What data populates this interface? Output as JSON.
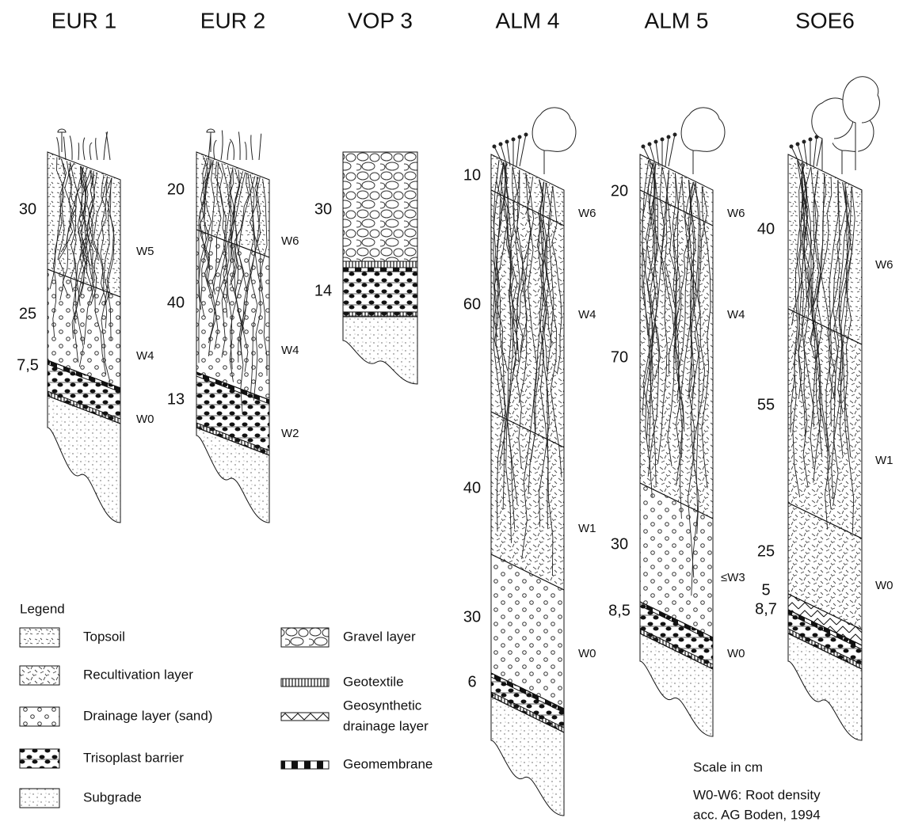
{
  "columns": [
    {
      "title": "EUR 1",
      "thicknesses": [
        "30",
        "25",
        "7,5"
      ],
      "root_density": [
        "W5",
        "W4",
        "W0"
      ]
    },
    {
      "title": "EUR 2",
      "thicknesses": [
        "20",
        "40",
        "13"
      ],
      "root_density": [
        "W6",
        "W4",
        "W2"
      ]
    },
    {
      "title": "VOP 3",
      "thicknesses": [
        "30",
        "14"
      ],
      "root_density": []
    },
    {
      "title": "ALM 4",
      "thicknesses": [
        "10",
        "60",
        "40",
        "30",
        "6"
      ],
      "root_density": [
        "W6",
        "W4",
        "W1",
        "W0"
      ]
    },
    {
      "title": "ALM 5",
      "thicknesses": [
        "20",
        "70",
        "30",
        "8,5"
      ],
      "root_density": [
        "W6",
        "W4",
        "≤W3",
        "W0"
      ]
    },
    {
      "title": "SOE6",
      "thicknesses": [
        "40",
        "55",
        "25",
        "5",
        "8,7"
      ],
      "root_density": [
        "W6",
        "W1",
        "W0"
      ]
    }
  ],
  "legend": {
    "title": "Legend",
    "left": [
      "Topsoil",
      "Recultivation layer",
      "Drainage layer (sand)",
      "Trisoplast barrier",
      "Subgrade"
    ],
    "right": [
      [
        "Gravel layer"
      ],
      [
        "Geotextile"
      ],
      [
        "Geosynthetic",
        "drainage layer"
      ],
      [
        "Geomembrane"
      ]
    ]
  },
  "notes": [
    "Scale in cm",
    "W0-W6: Root density",
    "acc. AG Boden, 1994"
  ]
}
